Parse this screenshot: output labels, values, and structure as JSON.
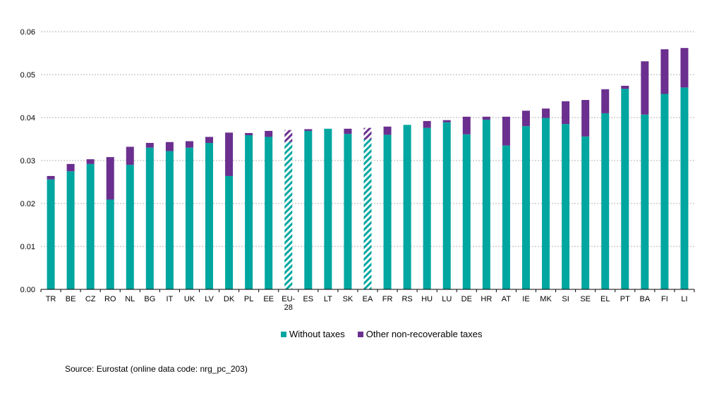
{
  "chart_data": {
    "type": "bar",
    "stacked": true,
    "categories": [
      "TR",
      "BE",
      "CZ",
      "RO",
      "NL",
      "BG",
      "IT",
      "UK",
      "LV",
      "DK",
      "PL",
      "EE",
      "EU-28",
      "ES",
      "LT",
      "SK",
      "EA",
      "FR",
      "RS",
      "HU",
      "LU",
      "DE",
      "HR",
      "AT",
      "IE",
      "MK",
      "SI",
      "SE",
      "EL",
      "PT",
      "BA",
      "FI",
      "LI"
    ],
    "hatched_categories": [
      "EU-28",
      "EA"
    ],
    "series": [
      {
        "name": "Without taxes",
        "color": "#00a6a0",
        "values": [
          0.0256,
          0.0275,
          0.0292,
          0.0209,
          0.029,
          0.033,
          0.0322,
          0.033,
          0.0341,
          0.0264,
          0.0359,
          0.0355,
          0.0343,
          0.0369,
          0.0374,
          0.0362,
          0.0349,
          0.036,
          0.0383,
          0.0376,
          0.0389,
          0.0361,
          0.0395,
          0.0335,
          0.038,
          0.0399,
          0.0385,
          0.0356,
          0.041,
          0.0467,
          0.0407,
          0.0455,
          0.047
        ]
      },
      {
        "name": "Other non-recoverable taxes",
        "color": "#6b2f8f",
        "values": [
          0.0008,
          0.0017,
          0.0011,
          0.0099,
          0.0042,
          0.0011,
          0.0021,
          0.0015,
          0.0014,
          0.0101,
          0.0005,
          0.0014,
          0.0028,
          0.0004,
          0.0,
          0.0012,
          0.0027,
          0.0019,
          0.0,
          0.0016,
          0.0005,
          0.0041,
          0.0007,
          0.0067,
          0.0036,
          0.0022,
          0.0053,
          0.0085,
          0.0056,
          0.0007,
          0.0124,
          0.0104,
          0.0092
        ]
      }
    ],
    "ylim": [
      0,
      0.06
    ],
    "yticks": [
      "0.00",
      "0.01",
      "0.02",
      "0.03",
      "0.04",
      "0.05",
      "0.06"
    ],
    "grid": true,
    "legend_position": "bottom"
  },
  "source": "Source: Eurostat (online data code: nrg_pc_203)"
}
